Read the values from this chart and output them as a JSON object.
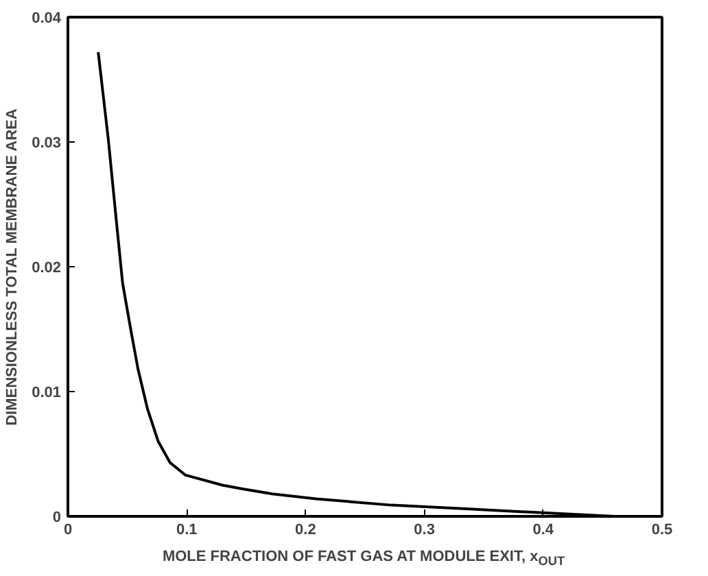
{
  "chart_data": {
    "type": "line",
    "xlabel": "MOLE FRACTION OF FAST GAS AT MODULE EXIT, x$_{OUT}$",
    "ylabel": "DIMENSIONLESS TOTAL MEMBRANE AREA",
    "x": [
      0.0255,
      0.034,
      0.04,
      0.046,
      0.053,
      0.059,
      0.067,
      0.076,
      0.086,
      0.099,
      0.13,
      0.147,
      0.172,
      0.209,
      0.272,
      0.335,
      0.397,
      0.46
    ],
    "series": [
      {
        "color": "#000000",
        "values": [
          0.0372,
          0.0302,
          0.0244,
          0.0187,
          0.0149,
          0.0118,
          0.0086,
          0.006,
          0.0043,
          0.0033,
          0.0025,
          0.0022,
          0.0018,
          0.0014,
          0.0009,
          0.0006,
          0.0003,
          0.0
        ]
      }
    ],
    "xlim": [
      0,
      0.5
    ],
    "ylim": [
      0,
      0.04
    ],
    "xticks": [
      0,
      0.1,
      0.2,
      0.3,
      0.4,
      0.5
    ],
    "yticks": [
      0,
      0.01,
      0.02,
      0.03,
      0.04
    ],
    "grid": false,
    "marker": "none",
    "line_style": "solid"
  }
}
